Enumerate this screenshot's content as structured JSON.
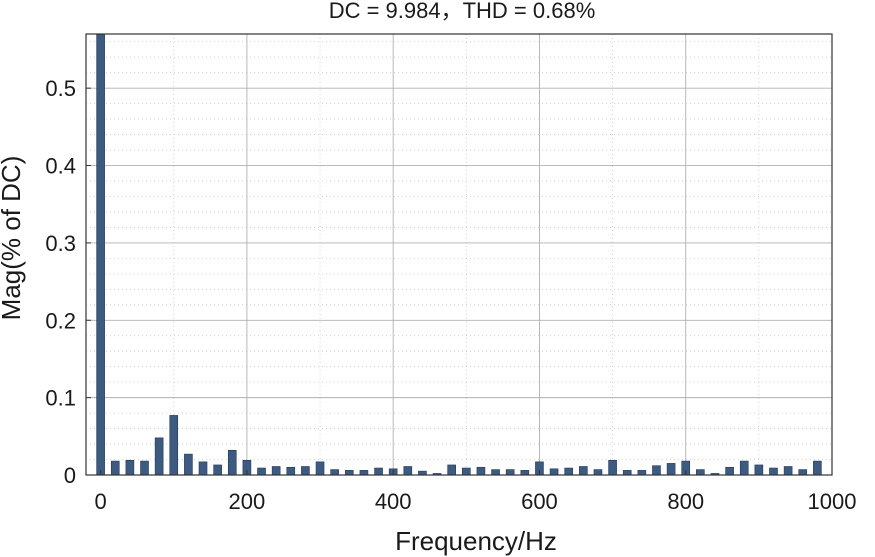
{
  "chart_data": {
    "type": "bar",
    "title": "DC = 9.984，THD = 0.68%",
    "xlabel": "Frequency/Hz",
    "ylabel": "Mag(% of DC)",
    "xlim": [
      -20,
      1000
    ],
    "ylim": [
      0,
      0.57
    ],
    "xticks": [
      0,
      200,
      400,
      600,
      800,
      1000
    ],
    "xtick_labels": [
      "0",
      "200",
      "400",
      "600",
      "800",
      "1000"
    ],
    "yticks": [
      0,
      0.1,
      0.2,
      0.3,
      0.4,
      0.5
    ],
    "ytick_labels": [
      "0",
      "0.1",
      "0.2",
      "0.3",
      "0.4",
      "0.5"
    ],
    "grid": true,
    "bar_color": "#3d5a80",
    "x": [
      0,
      20,
      40,
      60,
      80,
      100,
      120,
      140,
      160,
      180,
      200,
      220,
      240,
      260,
      280,
      300,
      320,
      340,
      360,
      380,
      400,
      420,
      440,
      460,
      480,
      500,
      520,
      540,
      560,
      580,
      600,
      620,
      640,
      660,
      680,
      700,
      720,
      740,
      760,
      780,
      800,
      820,
      840,
      860,
      880,
      900,
      920,
      940,
      960,
      980
    ],
    "values": [
      0.57,
      0.018,
      0.019,
      0.018,
      0.048,
      0.077,
      0.027,
      0.017,
      0.013,
      0.032,
      0.019,
      0.009,
      0.011,
      0.01,
      0.011,
      0.017,
      0.007,
      0.006,
      0.006,
      0.009,
      0.008,
      0.011,
      0.005,
      0.002,
      0.013,
      0.009,
      0.01,
      0.007,
      0.007,
      0.006,
      0.017,
      0.008,
      0.009,
      0.011,
      0.007,
      0.019,
      0.006,
      0.006,
      0.012,
      0.015,
      0.018,
      0.007,
      0.002,
      0.01,
      0.018,
      0.013,
      0.009,
      0.011,
      0.007,
      0.018
    ]
  }
}
